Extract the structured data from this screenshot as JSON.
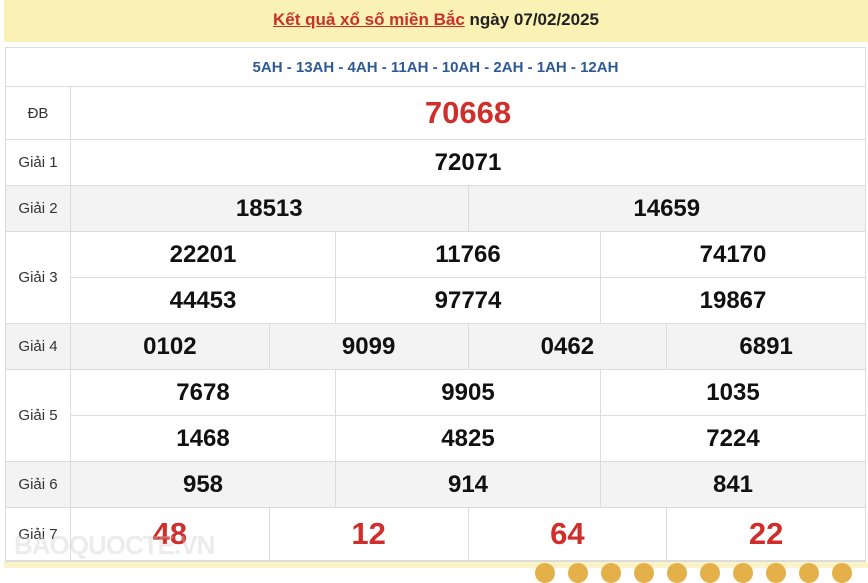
{
  "header": {
    "link_text": "Kết quả xổ số miền Bắc",
    "date_text": "ngày 07/02/2025"
  },
  "codes": "5AH - 13AH - 4AH - 11AH - 10AH - 2AH - 1AH - 12AH",
  "prizes": {
    "db": {
      "label": "ĐB",
      "numbers": [
        "70668"
      ]
    },
    "g1": {
      "label": "Giải 1",
      "numbers": [
        "72071"
      ]
    },
    "g2": {
      "label": "Giải 2",
      "numbers": [
        "18513",
        "14659"
      ]
    },
    "g3": {
      "label": "Giải 3",
      "numbers": [
        "22201",
        "11766",
        "74170",
        "44453",
        "97774",
        "19867"
      ]
    },
    "g4": {
      "label": "Giải 4",
      "numbers": [
        "0102",
        "9099",
        "0462",
        "6891"
      ]
    },
    "g5": {
      "label": "Giải 5",
      "numbers": [
        "7678",
        "9905",
        "1035",
        "1468",
        "4825",
        "7224"
      ]
    },
    "g6": {
      "label": "Giải 6",
      "numbers": [
        "958",
        "914",
        "841"
      ]
    },
    "g7": {
      "label": "Giải 7",
      "numbers": [
        "48",
        "12",
        "64",
        "22"
      ]
    }
  },
  "watermark": "BAOQUOCTE.VN",
  "colors": {
    "accent_red": "#cf2e2b",
    "code_blue": "#2d5a95",
    "header_bg": "#faf1b4"
  }
}
